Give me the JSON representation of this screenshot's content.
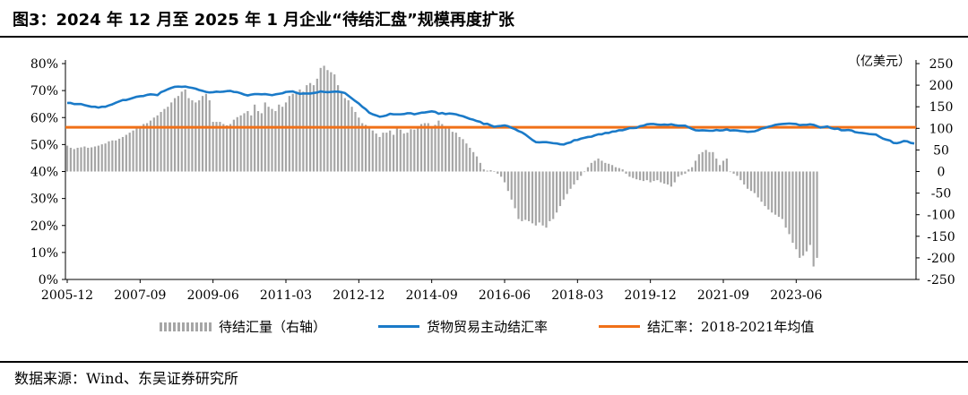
{
  "title": "图3：2024 年 12 月至 2025 年 1 月企业“待结汇盘”规模再度扩张",
  "source": "数据来源：Wind、东吴证券研究所",
  "colors": {
    "bar": "#a6a6a6",
    "line": "#1a7ac8",
    "avg": "#f07018"
  },
  "chart_data": {
    "type": "bar+line",
    "left_axis": {
      "ticks": [
        "0%",
        "10%",
        "20%",
        "30%",
        "40%",
        "50%",
        "60%",
        "70%",
        "80%"
      ],
      "min": 0,
      "max": 80
    },
    "right_axis": {
      "unit_label": "（亿美元）",
      "ticks": [
        "-250",
        "-200",
        "-150",
        "-100",
        "-50",
        "0",
        "50",
        "100",
        "150",
        "200",
        "250"
      ],
      "min": -250,
      "max": 250
    },
    "x_ticks": [
      "2005-12",
      "2007-09",
      "2009-06",
      "2011-03",
      "2012-12",
      "2014-09",
      "2016-06",
      "2018-03",
      "2019-12",
      "2021-09",
      "2023-06"
    ],
    "series": [
      {
        "name": "待结汇量（右轴）",
        "kind": "bar",
        "axis": "right",
        "values": [
          60,
          55,
          52,
          55,
          56,
          58,
          55,
          56,
          58,
          60,
          63,
          65,
          70,
          72,
          72,
          76,
          80,
          85,
          90,
          95,
          100,
          105,
          110,
          112,
          118,
          125,
          130,
          138,
          145,
          150,
          160,
          170,
          175,
          185,
          190,
          170,
          165,
          160,
          165,
          175,
          180,
          165,
          115,
          115,
          115,
          110,
          107,
          110,
          120,
          126,
          130,
          135,
          140,
          130,
          155,
          140,
          135,
          160,
          150,
          145,
          140,
          155,
          150,
          160,
          175,
          180,
          185,
          190,
          185,
          200,
          205,
          200,
          215,
          240,
          245,
          235,
          230,
          225,
          200,
          185,
          170,
          165,
          150,
          138,
          125,
          112,
          108,
          100,
          95,
          88,
          80,
          90,
          90,
          95,
          85,
          102,
          97,
          88,
          90,
          98,
          97,
          102,
          110,
          112,
          112,
          102,
          108,
          118,
          110,
          105,
          102,
          92,
          90,
          80,
          75,
          65,
          55,
          45,
          35,
          20,
          5,
          2,
          3,
          1,
          -5,
          -12,
          -25,
          -45,
          -65,
          -85,
          -110,
          -115,
          -112,
          -115,
          -120,
          -125,
          -118,
          -125,
          -130,
          -115,
          -110,
          -95,
          -80,
          -65,
          -52,
          -40,
          -30,
          -20,
          -10,
          0,
          10,
          20,
          25,
          30,
          25,
          20,
          18,
          15,
          10,
          8,
          5,
          -5,
          -12,
          -15,
          -18,
          -20,
          -22,
          -20,
          -25,
          -22,
          -20,
          -25,
          -28,
          -30,
          -35,
          -25,
          -12,
          -8,
          -5,
          5,
          10,
          25,
          40,
          45,
          50,
          45,
          45,
          30,
          15,
          25,
          30,
          0,
          -5,
          -10,
          -20,
          -30,
          -40,
          -45,
          -50,
          -60,
          -70,
          -80,
          -88,
          -95,
          -100,
          -105,
          -110,
          -130,
          -145,
          -165,
          -180,
          -200,
          -195,
          -185,
          -170,
          -220,
          -200
        ]
      },
      {
        "name": "货物贸易主动结汇率",
        "kind": "line",
        "axis": "left",
        "values": [
          65.4,
          65.4,
          65,
          65,
          65,
          64.6,
          64.3,
          64,
          64,
          63.7,
          64,
          64,
          64.5,
          64.9,
          65.5,
          66,
          66.5,
          66.5,
          66.9,
          67.3,
          67.7,
          67.9,
          68,
          68.4,
          68.6,
          68.5,
          68.3,
          69.4,
          69.9,
          70.5,
          71,
          71.4,
          71.5,
          71.4,
          71.5,
          71.2,
          71,
          70.7,
          70.2,
          69.9,
          69.5,
          69.3,
          69.4,
          69.6,
          69.5,
          69.6,
          69.8,
          69.9,
          69.5,
          69.4,
          69,
          68.5,
          68.2,
          68.5,
          68.7,
          68.7,
          68.6,
          68.7,
          68.5,
          68.3,
          68.6,
          68.8,
          69,
          69.5,
          69.6,
          69.7,
          69.2,
          68.8,
          68.9,
          68.9,
          68.9,
          69.1,
          69.3,
          69.7,
          69.5,
          69.4,
          69.5,
          69.6,
          69.6,
          69.4,
          69.1,
          68.1,
          67.1,
          66.1,
          65.2,
          64,
          63.1,
          61.8,
          61.2,
          60.8,
          60.3,
          60.5,
          60.8,
          61.4,
          61.2,
          61.2,
          61.2,
          61.3,
          61.6,
          61.6,
          61.2,
          61.5,
          61.8,
          61.9,
          62.1,
          62.3,
          62.1,
          61.4,
          61.7,
          61.3,
          61.5,
          61.4,
          61.2,
          60.8,
          60.5,
          60,
          59.5,
          59.2,
          58.7,
          58.4,
          57.6,
          57.7,
          57.1,
          56.6,
          56.8,
          56.9,
          57.1,
          56.8,
          56.2,
          55.7,
          55,
          54.5,
          53.7,
          52.7,
          51.7,
          50.9,
          50.8,
          50.9,
          50.9,
          50.7,
          50.5,
          50.4,
          50.1,
          50,
          50.5,
          50.8,
          51.6,
          51.7,
          52.2,
          52.5,
          52.8,
          52.9,
          53.4,
          53.8,
          53.8,
          54.3,
          54.3,
          54.8,
          54.9,
          55.3,
          55.3,
          55.7,
          56.1,
          56.1,
          56.2,
          56.8,
          57,
          57.5,
          57.6,
          57.6,
          57.4,
          57.3,
          57.4,
          57.3,
          57.5,
          57.2,
          57,
          57,
          57,
          56.4,
          55.8,
          55.3,
          55.2,
          55.3,
          55.2,
          55.1,
          55.1,
          55.4,
          55.2,
          55.3,
          55.6,
          55.2,
          55.3,
          55.2,
          55,
          54.9,
          54.7,
          54.8,
          54.9,
          55.3,
          55.9,
          56.2,
          56.6,
          56.9,
          57.3,
          57.5,
          57.6,
          57.7,
          57.8,
          57.7,
          57.6,
          57.2,
          57.3,
          57.3,
          57.5,
          57.3,
          56.8,
          56.3,
          56.5,
          56.7,
          56.1,
          55.8,
          55.9,
          55.3,
          55.3,
          55.4,
          55.2,
          54.6,
          54.4,
          54.3,
          54.1,
          53.9,
          53.8,
          53.7,
          52.9,
          52.2,
          51.8,
          51.5,
          50.6,
          50.5,
          50.8,
          51.3,
          51.2,
          50.6,
          50.4
        ]
      },
      {
        "name": "结汇率：2018-2021年均值",
        "kind": "line",
        "axis": "left",
        "value": 56.4
      }
    ]
  }
}
